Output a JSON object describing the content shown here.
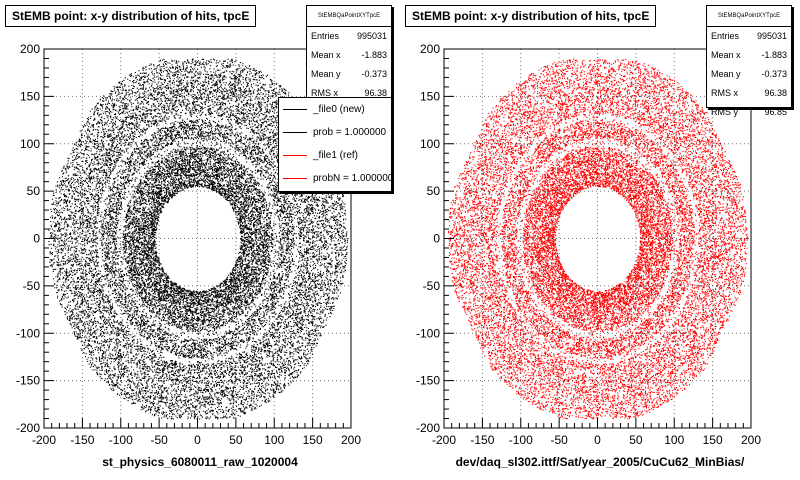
{
  "chart_data": [
    {
      "type": "scatter",
      "title": "StEMB point: x-y distribution of hits, tpcE",
      "xlabel": "st_physics_6080011_raw_1020004",
      "ylabel": "",
      "xlim": [
        -200,
        200
      ],
      "ylim": [
        -200,
        200
      ],
      "x_ticks": [
        -200,
        -150,
        -100,
        -50,
        0,
        50,
        100,
        150,
        200
      ],
      "y_ticks": [
        -200,
        -150,
        -100,
        -50,
        0,
        50,
        100,
        150,
        200
      ],
      "grid": true,
      "marker_color": "#000000",
      "stats": {
        "header": "StEMBQaPointXYTpcE",
        "entries": {
          "label": "Entries",
          "value": "995031"
        },
        "mean_x": {
          "label": "Mean x",
          "value": "-1.883"
        },
        "mean_y": {
          "label": "Mean y",
          "value": "-0.373"
        },
        "rms_x": {
          "label": "RMS x",
          "value": "96.38"
        }
      },
      "legend": {
        "placement": "top-right",
        "entries": [
          {
            "label": "_file0 (new)",
            "color": "#000000"
          },
          {
            "label": "prob = 1.000000",
            "color": "#000000"
          },
          {
            "label": "_file1 (ref)",
            "color": "#ff0000"
          },
          {
            "label": "probN = 1.000000",
            "color": "#ff0000"
          }
        ]
      }
    },
    {
      "type": "scatter",
      "title": "StEMB point: x-y distribution of hits, tpcE",
      "xlabel": "dev/daq_sl302.ittf/Sat/year_2005/CuCu62_MinBias/",
      "ylabel": "",
      "xlim": [
        -200,
        200
      ],
      "ylim": [
        -200,
        200
      ],
      "x_ticks": [
        -200,
        -150,
        -100,
        -50,
        0,
        50,
        100,
        150,
        200
      ],
      "y_ticks": [
        -200,
        -150,
        -100,
        -50,
        0,
        50,
        100,
        150,
        200
      ],
      "grid": true,
      "marker_color": "#ff0000",
      "stats": {
        "header": "StEMBQaPointXYTpcE",
        "entries": {
          "label": "Entries",
          "value": "995031"
        },
        "mean_x": {
          "label": "Mean x",
          "value": "-1.883"
        },
        "mean_y": {
          "label": "Mean y",
          "value": "-0.373"
        },
        "rms_x": {
          "label": "RMS x",
          "value": "96.38"
        },
        "rms_y": {
          "label": "RMS y",
          "value": "96.85"
        }
      }
    }
  ]
}
